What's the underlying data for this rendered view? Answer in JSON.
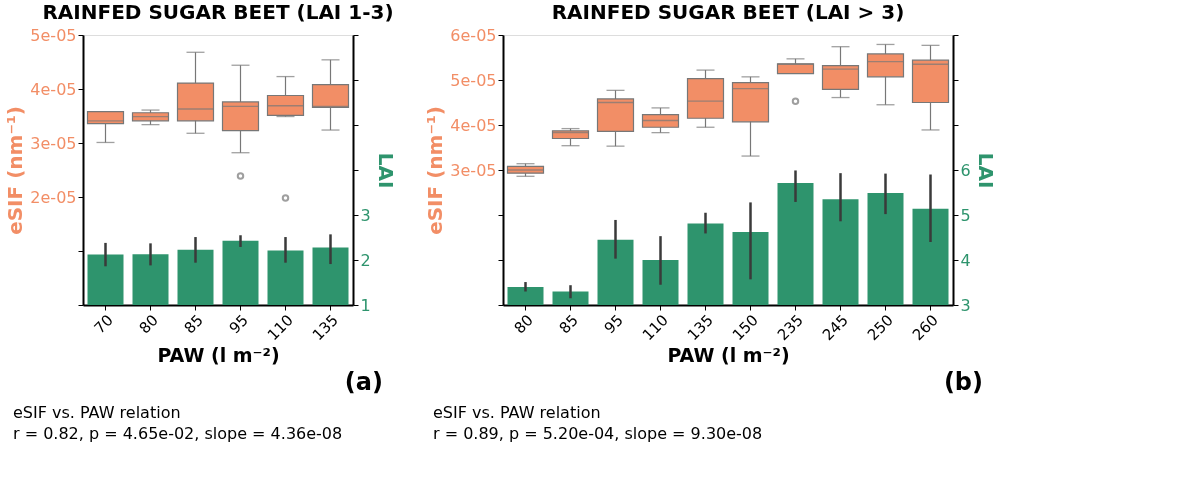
{
  "chart_data": [
    {
      "type": "box",
      "title": "RAINFED SUGAR BEET (LAI 1-3)",
      "xlabel": "PAW (l m⁻²)",
      "ylabel": "eSIF (nm⁻¹)",
      "y2label": "LAI",
      "categories": [
        "70",
        "80",
        "85",
        "95",
        "110",
        "135"
      ],
      "ylim": [
        0,
        5e-05
      ],
      "yticks": [
        {
          "value": 0,
          "label": null
        },
        {
          "value": 1e-05,
          "label": null
        },
        2e-05,
        3e-05,
        4e-05,
        5e-05
      ],
      "y2lim": [
        1,
        7
      ],
      "y2ticks": [
        1,
        2,
        3,
        {
          "value": 4,
          "label": null
        },
        {
          "value": 5,
          "label": null
        },
        {
          "value": 6,
          "label": null
        },
        {
          "value": 7,
          "label": null
        }
      ],
      "series": [
        {
          "color": "#f28e66",
          "boxes": [
            {
              "low": 3.01e-05,
              "q1": 3.36e-05,
              "median": 3.41e-05,
              "q3": 3.58e-05,
              "high": 3.58e-05
            },
            {
              "low": 3.34e-05,
              "q1": 3.41e-05,
              "median": 3.49e-05,
              "q3": 3.56e-05,
              "high": 3.61e-05
            },
            {
              "low": 3.18e-05,
              "q1": 3.41e-05,
              "median": 3.63e-05,
              "q3": 4.11e-05,
              "high": 4.68e-05
            },
            {
              "low": 2.82e-05,
              "q1": 3.23e-05,
              "median": 3.68e-05,
              "q3": 3.76e-05,
              "high": 4.44e-05,
              "outliers": [
                2.39e-05
              ]
            },
            {
              "low": 3.49e-05,
              "q1": 3.51e-05,
              "median": 3.69e-05,
              "q3": 3.88e-05,
              "high": 4.23e-05,
              "outliers": [
                1.98e-05
              ]
            },
            {
              "low": 3.24e-05,
              "q1": 3.66e-05,
              "median": 3.68e-05,
              "q3": 4.08e-05,
              "high": 4.54e-05
            }
          ]
        },
        {
          "type": "bar",
          "axis": "y2",
          "color": "#2e946d",
          "values": [
            2.12,
            2.13,
            2.23,
            2.43,
            2.21,
            2.28
          ],
          "errors": [
            [
              1.86,
              2.38
            ],
            [
              1.88,
              2.37
            ],
            [
              1.94,
              2.51
            ],
            [
              2.29,
              2.55
            ],
            [
              1.94,
              2.51
            ],
            [
              1.91,
              2.57
            ]
          ]
        }
      ],
      "annotations": [
        "(a)",
        "eSIF vs. PAW relation\nr = 0.82, p = 4.65e-02, slope = 4.36e-08"
      ]
    },
    {
      "type": "box",
      "title": "RAINFED SUGAR BEET (LAI > 3)",
      "xlabel": "PAW (l m⁻²)",
      "ylabel": "eSIF (nm⁻¹)",
      "y2label": "LAI",
      "categories": [
        "80",
        "85",
        "95",
        "110",
        "135",
        "150",
        "235",
        "245",
        "250",
        "260"
      ],
      "ylim": [
        0,
        6e-05
      ],
      "yticks": [
        {
          "value": 0,
          "label": null
        },
        {
          "value": 1e-05,
          "label": null
        },
        {
          "value": 2e-05,
          "label": null
        },
        3e-05,
        4e-05,
        5e-05,
        6e-05
      ],
      "y2lim": [
        3,
        9
      ],
      "y2ticks": [
        3,
        4,
        5,
        6,
        {
          "value": 7,
          "label": null
        },
        {
          "value": 8,
          "label": null
        },
        {
          "value": 9,
          "label": null
        }
      ],
      "series": [
        {
          "color": "#f28e66",
          "boxes": [
            {
              "low": 2.86e-05,
              "q1": 2.93e-05,
              "median": 3e-05,
              "q3": 3.08e-05,
              "high": 3.14e-05
            },
            {
              "low": 3.54e-05,
              "q1": 3.7e-05,
              "median": 3.83e-05,
              "q3": 3.87e-05,
              "high": 3.92e-05
            },
            {
              "low": 3.53e-05,
              "q1": 3.86e-05,
              "median": 4.5e-05,
              "q3": 4.58e-05,
              "high": 4.77e-05
            },
            {
              "low": 3.83e-05,
              "q1": 3.95e-05,
              "median": 4.1e-05,
              "q3": 4.23e-05,
              "high": 4.38e-05
            },
            {
              "low": 3.95e-05,
              "q1": 4.15e-05,
              "median": 4.53e-05,
              "q3": 5.03e-05,
              "high": 5.22e-05
            },
            {
              "low": 3.31e-05,
              "q1": 4.07e-05,
              "median": 4.81e-05,
              "q3": 4.94e-05,
              "high": 5.07e-05
            },
            {
              "low": 5.14e-05,
              "q1": 5.14e-05,
              "median": 5.35e-05,
              "q3": 5.36e-05,
              "high": 5.47e-05,
              "outliers": [
                4.53e-05
              ]
            },
            {
              "low": 4.61e-05,
              "q1": 4.79e-05,
              "median": 5.24e-05,
              "q3": 5.32e-05,
              "high": 5.74e-05
            },
            {
              "low": 4.45e-05,
              "q1": 5.07e-05,
              "median": 5.41e-05,
              "q3": 5.58e-05,
              "high": 5.79e-05
            },
            {
              "low": 3.89e-05,
              "q1": 4.5e-05,
              "median": 5.35e-05,
              "q3": 5.44e-05,
              "high": 5.77e-05
            }
          ]
        },
        {
          "type": "bar",
          "axis": "y2",
          "color": "#2e946d",
          "values": [
            3.4,
            3.3,
            4.45,
            4.0,
            4.81,
            4.62,
            5.71,
            5.35,
            5.49,
            5.14
          ],
          "errors": [
            [
              3.3,
              3.51
            ],
            [
              3.15,
              3.44
            ],
            [
              4.03,
              4.89
            ],
            [
              3.45,
              4.53
            ],
            [
              4.59,
              5.05
            ],
            [
              3.57,
              5.28
            ],
            [
              5.29,
              5.99
            ],
            [
              4.86,
              5.93
            ],
            [
              5.02,
              5.92
            ],
            [
              4.4,
              5.9
            ]
          ]
        }
      ],
      "annotations": [
        "(b)",
        "eSIF vs. PAW relation\nr = 0.89, p = 5.20e-04, slope = 9.30e-08"
      ]
    }
  ]
}
